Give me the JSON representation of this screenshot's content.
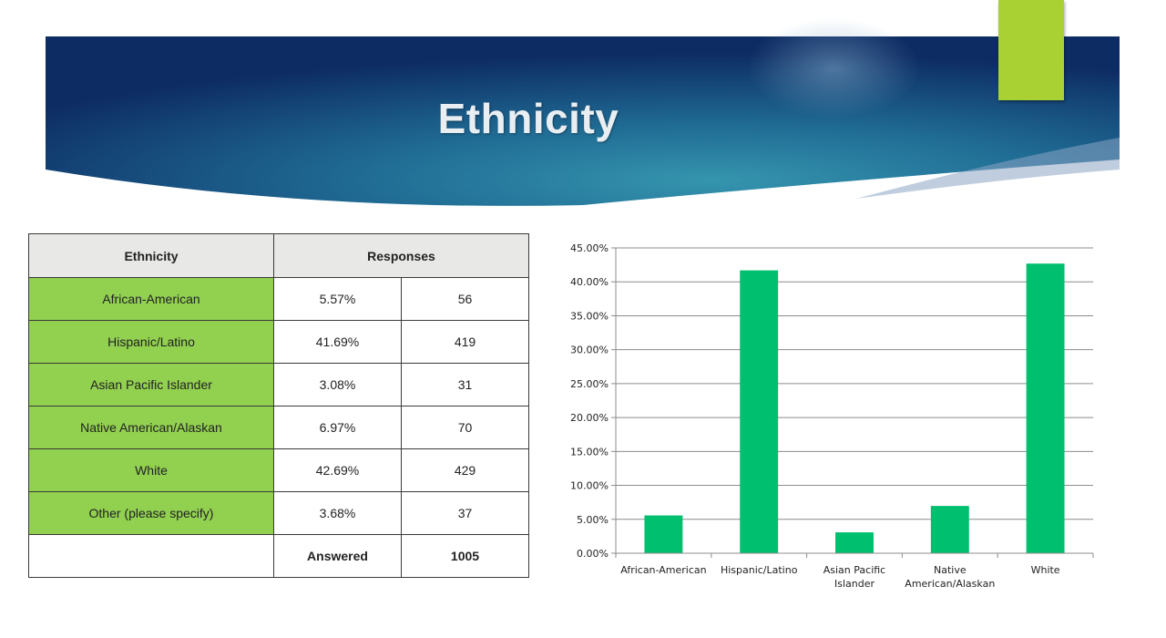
{
  "slide": {
    "title": "Ethnicity",
    "colors": {
      "banner_dark": "#0d2c63",
      "banner_mid": "#2e89a6",
      "accent": "#a9d134",
      "table_label_fill": "#92d050",
      "header_fill": "#e8e8e6",
      "bar": "#00bf6f"
    }
  },
  "table": {
    "headers": {
      "ethnicity": "Ethnicity",
      "responses": "Responses"
    },
    "rows": [
      {
        "label": "African-American",
        "percent": "5.57%",
        "count": "56"
      },
      {
        "label": "Hispanic/Latino",
        "percent": "41.69%",
        "count": "419"
      },
      {
        "label": "Asian Pacific Islander",
        "percent": "3.08%",
        "count": "31"
      },
      {
        "label": "Native American/Alaskan",
        "percent": "6.97%",
        "count": "70"
      },
      {
        "label": "White",
        "percent": "42.69%",
        "count": "429"
      },
      {
        "label": "Other (please specify)",
        "percent": "3.68%",
        "count": "37"
      }
    ],
    "footer": {
      "label": "Answered",
      "total": "1005"
    }
  },
  "chart_data": {
    "type": "bar",
    "categories": [
      "African-American",
      "Hispanic/Latino",
      "Asian Pacific Islander",
      "Native American/Alaskan",
      "White"
    ],
    "category_label_lines": [
      [
        "African-American"
      ],
      [
        "Hispanic/Latino"
      ],
      [
        "Asian Pacific",
        "Islander"
      ],
      [
        "Native",
        "American/Alaskan"
      ],
      [
        "White"
      ]
    ],
    "values": [
      5.57,
      41.69,
      3.08,
      6.97,
      42.69
    ],
    "ylim": [
      0,
      45
    ],
    "yticks": [
      "0.00%",
      "5.00%",
      "10.00%",
      "15.00%",
      "20.00%",
      "25.00%",
      "30.00%",
      "35.00%",
      "40.00%",
      "45.00%"
    ],
    "grid": true,
    "bar_color": "#00bf6f"
  }
}
